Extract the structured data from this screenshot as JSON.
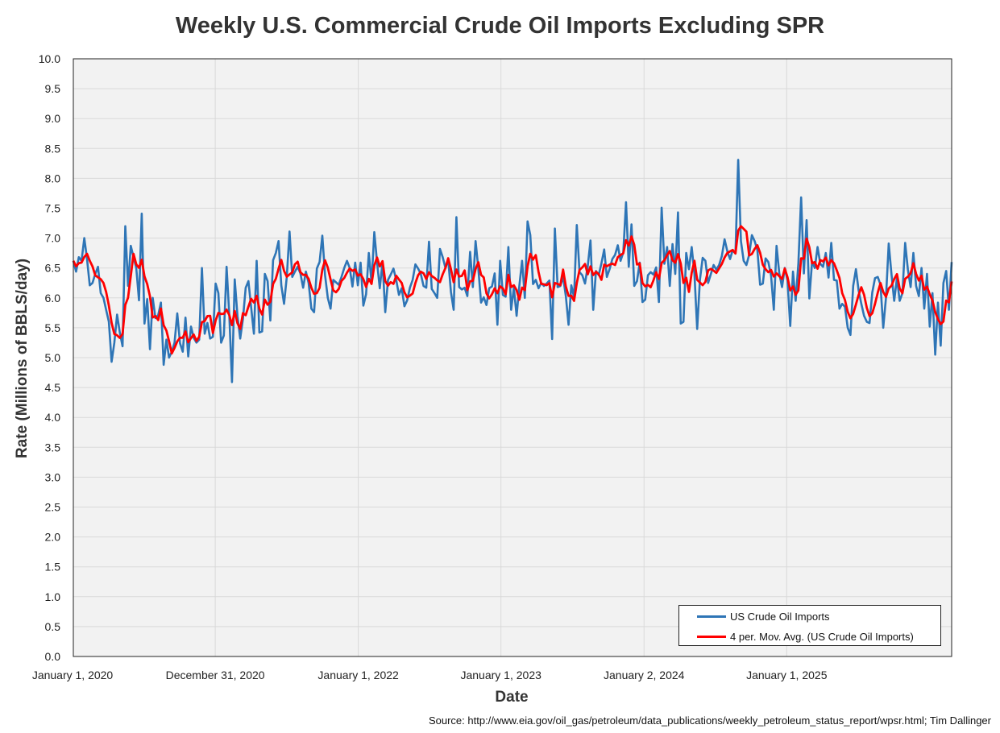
{
  "chart_data": {
    "type": "line",
    "title": "Weekly U.S. Commercial Crude Oil Imports Excluding SPR",
    "xlabel": "Date",
    "ylabel": "Rate (Millions of BBLS/day)",
    "source": "Source: http://www.eia.gov/oil_gas/petroleum/data_publications/weekly_petroleum_status_report/wpsr.html; Tim Dallinger",
    "x_tick_labels": [
      "January 1, 2020",
      "December 31, 2020",
      "January 1, 2022",
      "January 1, 2023",
      "January 2, 2024",
      "January 1, 2025"
    ],
    "y_ticks": [
      "0.0",
      "0.5",
      "1.0",
      "1.5",
      "2.0",
      "2.5",
      "3.0",
      "3.5",
      "4.0",
      "4.5",
      "5.0",
      "5.5",
      "6.0",
      "6.5",
      "7.0",
      "7.5",
      "8.0",
      "8.5",
      "9.0",
      "9.5",
      "10.0"
    ],
    "ylim": [
      0,
      10
    ],
    "grid": true,
    "legend_position": "bottom-right",
    "colors": {
      "imports": "#2e75b6",
      "moving_avg": "#ff0000",
      "plot_bg": "#f2f2f2",
      "grid": "#d9d9d9"
    },
    "x_start_date": "2020-01-03",
    "x_step": "weekly",
    "series": [
      {
        "name": "US Crude Oil Imports",
        "values": [
          6.62,
          6.44,
          6.68,
          6.62,
          7.0,
          6.65,
          6.21,
          6.25,
          6.4,
          6.52,
          6.08,
          6.0,
          5.8,
          5.6,
          4.93,
          5.25,
          5.72,
          5.42,
          5.19,
          7.2,
          6.2,
          6.87,
          6.68,
          6.5,
          5.96,
          7.41,
          5.57,
          5.98,
          5.14,
          6.0,
          5.66,
          5.71,
          5.92,
          4.88,
          5.3,
          5.0,
          5.1,
          5.25,
          5.74,
          5.24,
          5.1,
          5.67,
          5.02,
          5.52,
          5.33,
          5.25,
          5.3,
          6.5,
          5.4,
          5.58,
          5.32,
          5.35,
          6.24,
          6.08,
          5.25,
          5.37,
          6.52,
          5.7,
          4.59,
          6.31,
          5.7,
          5.32,
          5.65,
          6.17,
          6.28,
          5.84,
          5.4,
          6.62,
          5.42,
          5.44,
          6.4,
          6.28,
          5.62,
          6.63,
          6.75,
          6.95,
          6.21,
          5.9,
          6.35,
          7.11,
          6.35,
          6.44,
          6.52,
          6.41,
          6.17,
          6.44,
          6.25,
          5.82,
          5.76,
          6.49,
          6.6,
          7.04,
          6.38,
          6.0,
          5.82,
          6.3,
          6.26,
          6.22,
          6.35,
          6.5,
          6.62,
          6.5,
          6.19,
          6.59,
          6.21,
          6.59,
          5.87,
          6.06,
          6.75,
          6.25,
          7.1,
          6.6,
          6.16,
          6.6,
          5.76,
          6.3,
          6.39,
          6.49,
          6.3,
          6.05,
          6.16,
          5.86,
          5.96,
          6.17,
          6.3,
          6.56,
          6.49,
          6.4,
          6.2,
          6.17,
          6.94,
          6.15,
          6.08,
          6.0,
          6.82,
          6.68,
          6.5,
          6.65,
          6.1,
          5.8,
          7.35,
          6.18,
          6.14,
          6.17,
          6.03,
          6.77,
          6.18,
          6.95,
          6.49,
          5.92,
          6.01,
          5.88,
          6.16,
          6.19,
          6.41,
          5.55,
          6.62,
          6.05,
          6.02,
          6.85,
          5.8,
          6.17,
          5.7,
          6.2,
          6.62,
          6.0,
          7.28,
          7.05,
          6.23,
          6.3,
          6.16,
          6.25,
          6.2,
          6.24,
          6.29,
          5.31,
          7.16,
          6.18,
          6.2,
          6.35,
          6.03,
          5.55,
          6.21,
          6.01,
          7.22,
          6.43,
          6.38,
          6.24,
          6.53,
          6.96,
          5.8,
          6.45,
          6.38,
          6.58,
          6.81,
          6.35,
          6.48,
          6.65,
          6.72,
          6.88,
          6.62,
          6.76,
          7.6,
          6.52,
          7.23,
          6.2,
          6.28,
          6.59,
          5.93,
          5.97,
          6.38,
          6.43,
          6.39,
          6.51,
          5.93,
          7.51,
          6.57,
          6.85,
          6.2,
          6.9,
          6.4,
          7.43,
          5.57,
          5.6,
          6.75,
          6.48,
          6.85,
          6.4,
          5.48,
          6.3,
          6.67,
          6.62,
          6.25,
          6.4,
          6.55,
          6.47,
          6.55,
          6.7,
          6.98,
          6.78,
          6.65,
          6.8,
          6.74,
          8.31,
          6.95,
          6.62,
          6.55,
          6.72,
          7.05,
          6.95,
          6.8,
          6.22,
          6.24,
          6.66,
          6.6,
          6.37,
          5.8,
          6.87,
          6.41,
          6.18,
          6.5,
          6.29,
          5.53,
          6.44,
          5.95,
          6.58,
          7.68,
          6.41,
          7.3,
          5.99,
          6.61,
          6.5,
          6.85,
          6.57,
          6.52,
          6.75,
          6.34,
          6.92,
          6.3,
          6.29,
          5.82,
          5.9,
          5.85,
          5.5,
          5.38,
          6.2,
          6.48,
          6.13,
          5.9,
          5.7,
          5.6,
          5.58,
          6.09,
          6.33,
          6.35,
          6.22,
          5.5,
          6.0,
          6.91,
          6.4,
          5.95,
          6.33,
          5.95,
          6.08,
          6.92,
          6.47,
          6.18,
          6.75,
          6.2,
          6.03,
          6.5,
          5.82,
          6.4,
          5.52,
          6.08,
          5.05,
          5.92,
          5.2,
          6.25,
          6.45,
          5.8,
          6.6
        ]
      },
      {
        "name": "4 per. Mov. Avg. (US Crude Oil Imports)",
        "window": 4
      }
    ]
  }
}
